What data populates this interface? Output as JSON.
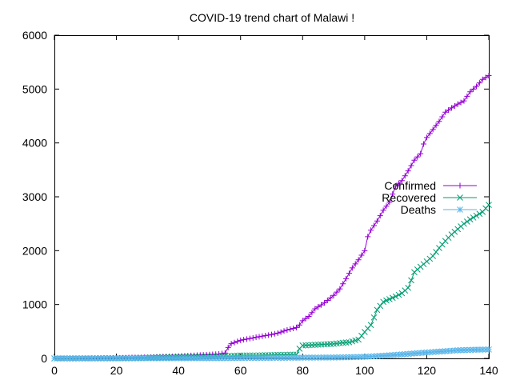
{
  "chart_data": {
    "type": "line",
    "title": "COVID-19 trend chart of Malawi !",
    "xlabel": "",
    "ylabel": "",
    "xlim": [
      0,
      140
    ],
    "ylim": [
      0,
      6000
    ],
    "x_ticks": [
      0,
      20,
      40,
      60,
      80,
      100,
      120,
      140
    ],
    "y_ticks": [
      0,
      1000,
      2000,
      3000,
      4000,
      5000,
      6000
    ],
    "grid": false,
    "legend_position": "right",
    "series": [
      {
        "name": "Confirmed",
        "color": "#9400d3",
        "marker": "plus",
        "points": [
          [
            0,
            0
          ],
          [
            5,
            0
          ],
          [
            10,
            2
          ],
          [
            15,
            4
          ],
          [
            20,
            8
          ],
          [
            25,
            17
          ],
          [
            30,
            18
          ],
          [
            35,
            33
          ],
          [
            40,
            41
          ],
          [
            45,
            56
          ],
          [
            50,
            70
          ],
          [
            53,
            82
          ],
          [
            55,
            101
          ],
          [
            56,
            203
          ],
          [
            57,
            273
          ],
          [
            60,
            336
          ],
          [
            62,
            358
          ],
          [
            65,
            393
          ],
          [
            70,
            443
          ],
          [
            72,
            470
          ],
          [
            75,
            527
          ],
          [
            78,
            573
          ],
          [
            79,
            620
          ],
          [
            80,
            700
          ],
          [
            82,
            780
          ],
          [
            84,
            920
          ],
          [
            87,
            1030
          ],
          [
            90,
            1170
          ],
          [
            92,
            1290
          ],
          [
            94,
            1480
          ],
          [
            96,
            1680
          ],
          [
            98,
            1830
          ],
          [
            100,
            2000
          ],
          [
            101,
            2260
          ],
          [
            102,
            2380
          ],
          [
            104,
            2550
          ],
          [
            106,
            2750
          ],
          [
            108,
            2900
          ],
          [
            110,
            3200
          ],
          [
            112,
            3300
          ],
          [
            114,
            3480
          ],
          [
            116,
            3680
          ],
          [
            118,
            3800
          ],
          [
            119,
            3980
          ],
          [
            120,
            4100
          ],
          [
            122,
            4250
          ],
          [
            124,
            4400
          ],
          [
            126,
            4570
          ],
          [
            128,
            4650
          ],
          [
            130,
            4720
          ],
          [
            132,
            4780
          ],
          [
            134,
            4950
          ],
          [
            136,
            5050
          ],
          [
            138,
            5180
          ],
          [
            140,
            5250
          ]
        ]
      },
      {
        "name": "Recovered",
        "color": "#009e73",
        "marker": "x",
        "points": [
          [
            0,
            0
          ],
          [
            10,
            0
          ],
          [
            20,
            3
          ],
          [
            25,
            4
          ],
          [
            30,
            12
          ],
          [
            40,
            24
          ],
          [
            45,
            28
          ],
          [
            50,
            38
          ],
          [
            55,
            42
          ],
          [
            60,
            55
          ],
          [
            65,
            55
          ],
          [
            70,
            62
          ],
          [
            75,
            68
          ],
          [
            78,
            70
          ],
          [
            79,
            180
          ],
          [
            80,
            240
          ],
          [
            85,
            255
          ],
          [
            90,
            270
          ],
          [
            93,
            290
          ],
          [
            95,
            300
          ],
          [
            98,
            350
          ],
          [
            100,
            490
          ],
          [
            102,
            620
          ],
          [
            104,
            900
          ],
          [
            106,
            1050
          ],
          [
            108,
            1100
          ],
          [
            110,
            1150
          ],
          [
            112,
            1210
          ],
          [
            114,
            1310
          ],
          [
            115,
            1450
          ],
          [
            116,
            1600
          ],
          [
            118,
            1700
          ],
          [
            120,
            1800
          ],
          [
            122,
            1900
          ],
          [
            124,
            2050
          ],
          [
            126,
            2180
          ],
          [
            128,
            2300
          ],
          [
            130,
            2400
          ],
          [
            132,
            2500
          ],
          [
            134,
            2580
          ],
          [
            136,
            2650
          ],
          [
            138,
            2720
          ],
          [
            140,
            2850
          ]
        ]
      },
      {
        "name": "Deaths",
        "color": "#56b4e9",
        "marker": "star",
        "points": [
          [
            0,
            0
          ],
          [
            20,
            0
          ],
          [
            30,
            3
          ],
          [
            40,
            3
          ],
          [
            55,
            4
          ],
          [
            60,
            8
          ],
          [
            70,
            10
          ],
          [
            80,
            14
          ],
          [
            90,
            17
          ],
          [
            95,
            22
          ],
          [
            100,
            30
          ],
          [
            105,
            46
          ],
          [
            110,
            65
          ],
          [
            115,
            88
          ],
          [
            120,
            110
          ],
          [
            125,
            130
          ],
          [
            130,
            150
          ],
          [
            135,
            160
          ],
          [
            140,
            165
          ]
        ]
      }
    ]
  }
}
